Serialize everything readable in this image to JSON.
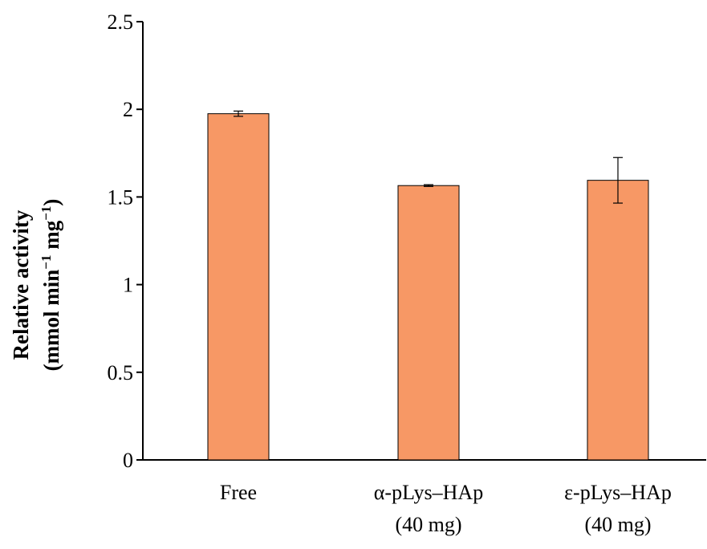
{
  "chart_data": {
    "type": "bar",
    "categories": [
      [
        "Free"
      ],
      [
        "α-pLys–HAp",
        "(40 mg)"
      ],
      [
        "ε-pLys–HAp",
        "(40 mg)"
      ]
    ],
    "values": [
      1.975,
      1.565,
      1.595
    ],
    "errors": [
      0.015,
      0.005,
      0.13
    ],
    "ylabel_line1": "Relative activity",
    "ylabel_line2_parts": [
      "(mmol min",
      "−1",
      " mg",
      "−1",
      ")"
    ],
    "ylim": [
      0,
      2.5
    ],
    "yticks": [
      0,
      0.5,
      1,
      1.5,
      2,
      2.5
    ],
    "ytick_labels": [
      "0",
      "0.5",
      "1",
      "1.5",
      "2",
      "2.5"
    ],
    "grid": false,
    "bar_color": "#f79865",
    "bar_edge_color": "#000000"
  }
}
